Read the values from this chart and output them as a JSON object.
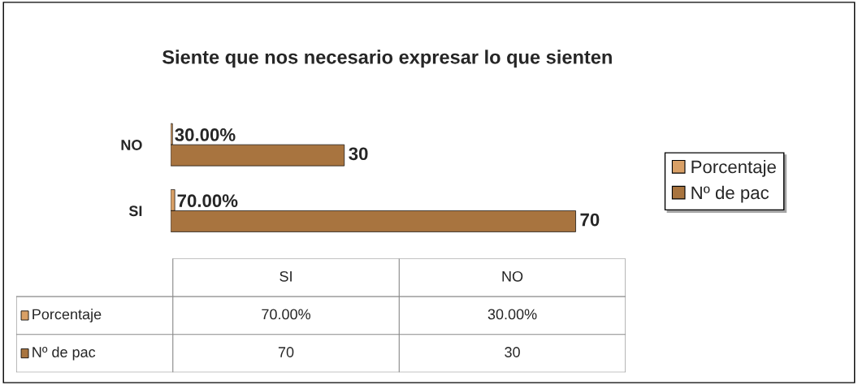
{
  "chart_data": {
    "type": "bar",
    "orientation": "horizontal",
    "title": "Siente que nos necesario expresar lo que sienten",
    "categories": [
      "NO",
      "SI"
    ],
    "series": [
      {
        "name": "Porcentaje",
        "color": "#d9a066",
        "values": [
          0.3,
          0.7
        ],
        "value_labels": [
          "30.00%",
          "70.00%"
        ]
      },
      {
        "name": "Nº de pac",
        "color": "#a8743f",
        "values": [
          30,
          70
        ],
        "value_labels": [
          "30",
          "70"
        ]
      }
    ],
    "legend": "right",
    "grid": false,
    "tick_labels": "y"
  }
}
